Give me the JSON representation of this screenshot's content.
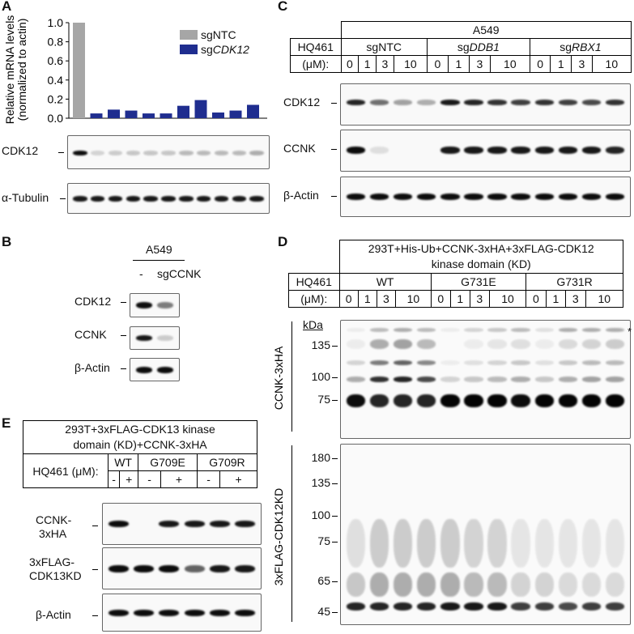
{
  "panels": {
    "A": "A",
    "B": "B",
    "C": "C",
    "D": "D",
    "E": "E"
  },
  "panelA": {
    "ylabel_1": "Relative mRNA levels",
    "ylabel_2": "(normalized to actin)",
    "yticks": [
      "0.0",
      "0.2",
      "0.4",
      "0.6",
      "0.8",
      "1.0"
    ],
    "legend": [
      {
        "prefix": "sg",
        "name": "NTC",
        "italic": false,
        "color": "#a6a6a6"
      },
      {
        "prefix": "sg",
        "name": "CDK12",
        "italic": true,
        "color": "#1f2d8f"
      }
    ],
    "blot_labels": [
      "CDK12",
      "α-Tubulin"
    ]
  },
  "chart_data": {
    "type": "bar",
    "ylabel": "Relative mRNA levels (normalized to actin)",
    "ylim": [
      0,
      1.0
    ],
    "series": [
      {
        "name": "sgNTC",
        "values": [
          1.0,
          null,
          null,
          null,
          null,
          null,
          null,
          null,
          null,
          null,
          null
        ]
      },
      {
        "name": "sgCDK12",
        "values": [
          null,
          0.05,
          0.09,
          0.08,
          0.05,
          0.05,
          0.13,
          0.19,
          0.06,
          0.08,
          0.14
        ]
      }
    ]
  },
  "panelB": {
    "cell": "A549",
    "lanes": [
      "-",
      "sgCCNK"
    ],
    "blots": [
      "CDK12",
      "CCNK",
      "β-Actin"
    ]
  },
  "panelC": {
    "cell": "A549",
    "treatment": "HQ461",
    "unit": "(μM):",
    "groups": [
      {
        "prefix": "sg",
        "name": "NTC",
        "italic": false
      },
      {
        "prefix": "sg",
        "name": "DDB1",
        "italic": true
      },
      {
        "prefix": "sg",
        "name": "RBX1",
        "italic": true
      }
    ],
    "doses": [
      "0",
      "1",
      "3",
      "10"
    ],
    "blots": [
      "CDK12",
      "CCNK",
      "β-Actin"
    ]
  },
  "panelD": {
    "title_1": "293T+His-Ub+CCNK-3xHA+3xFLAG-CDK12",
    "title_2": "kinase domain (KD)",
    "treatment": "HQ461",
    "unit": "(μM):",
    "groups": [
      "WT",
      "G731E",
      "G731R"
    ],
    "doses": [
      "0",
      "1",
      "3",
      "10"
    ],
    "kda": "kDa",
    "top_markers": [
      "135",
      "100",
      "75"
    ],
    "bottom_markers": [
      "180",
      "135",
      "100",
      "75",
      "65",
      "45"
    ],
    "top_label": "CCNK-3xHA",
    "bottom_label": "3xFLAG-CDK12KD",
    "asterisk": "*"
  },
  "panelE": {
    "title_1": "293T+3xFLAG-CDK13 kinase",
    "title_2": "domain (KD)+CCNK-3xHA",
    "treatment": "HQ461 (μM):",
    "groups": [
      "WT",
      "G709E",
      "G709R"
    ],
    "signs": [
      "-",
      "+"
    ],
    "blots": [
      {
        "l1": "CCNK-",
        "l2": "3xHA"
      },
      {
        "l1": "3xFLAG-",
        "l2": "CDK13KD"
      },
      {
        "l1": "β-Actin",
        "l2": ""
      }
    ]
  }
}
